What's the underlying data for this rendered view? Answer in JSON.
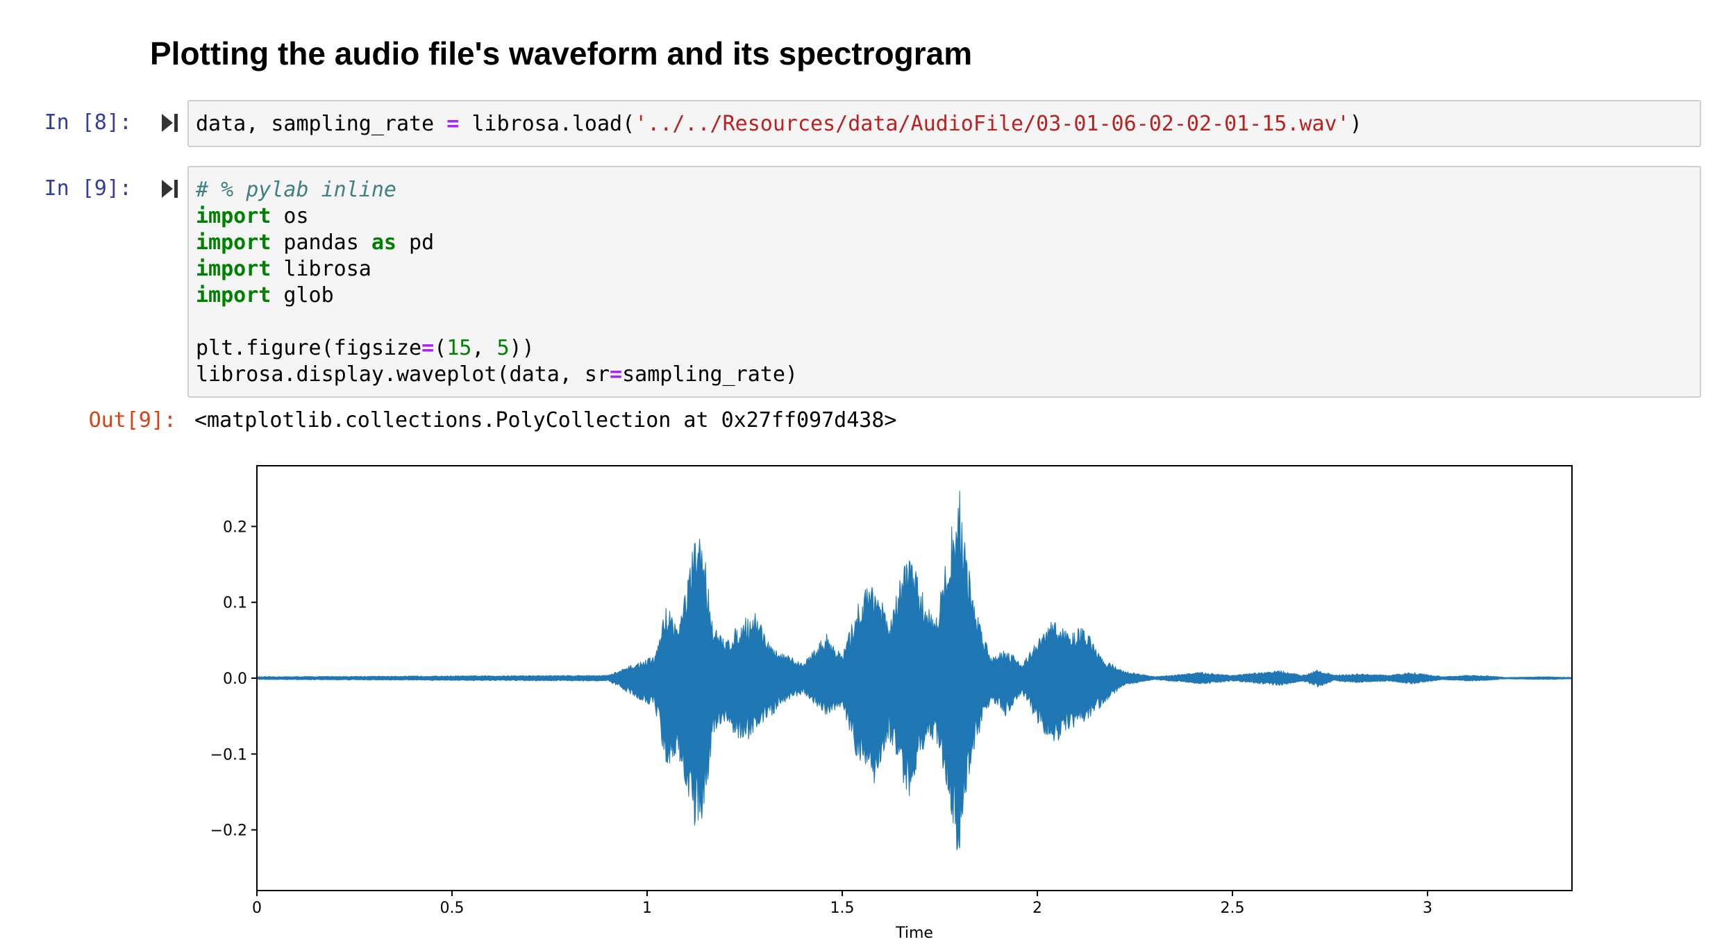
{
  "heading": "Plotting the audio file's waveform and its spectrogram",
  "cells": [
    {
      "prompt": "In [8]:",
      "lines": [
        [
          {
            "t": "data, sampling_rate ",
            "c": ""
          },
          {
            "t": "=",
            "c": "op"
          },
          {
            "t": " librosa.load(",
            "c": ""
          },
          {
            "t": "'../../Resources/data/AudioFile/03-01-06-02-02-01-15.wav'",
            "c": "str"
          },
          {
            "t": ")",
            "c": ""
          }
        ]
      ]
    },
    {
      "prompt": "In [9]:",
      "lines": [
        [
          {
            "t": "# % pylab inline",
            "c": "cm"
          }
        ],
        [
          {
            "t": "import",
            "c": "kw"
          },
          {
            "t": " os",
            "c": ""
          }
        ],
        [
          {
            "t": "import",
            "c": "kw"
          },
          {
            "t": " pandas ",
            "c": ""
          },
          {
            "t": "as",
            "c": "kw"
          },
          {
            "t": " pd",
            "c": ""
          }
        ],
        [
          {
            "t": "import",
            "c": "kw"
          },
          {
            "t": " librosa",
            "c": ""
          }
        ],
        [
          {
            "t": "import",
            "c": "kw"
          },
          {
            "t": " glob",
            "c": ""
          }
        ],
        [
          {
            "t": "",
            "c": ""
          }
        ],
        [
          {
            "t": "plt.figure(figsize",
            "c": ""
          },
          {
            "t": "=",
            "c": "op"
          },
          {
            "t": "(",
            "c": ""
          },
          {
            "t": "15",
            "c": "num"
          },
          {
            "t": ", ",
            "c": ""
          },
          {
            "t": "5",
            "c": "num"
          },
          {
            "t": "))",
            "c": ""
          }
        ],
        [
          {
            "t": "librosa.display.waveplot(data, sr",
            "c": ""
          },
          {
            "t": "=",
            "c": "op"
          },
          {
            "t": "sampling_rate)",
            "c": ""
          }
        ]
      ]
    }
  ],
  "output": {
    "prompt": "Out[9]:",
    "text": "<matplotlib.collections.PolyCollection at 0x27ff097d438>"
  },
  "chart_data": {
    "type": "area",
    "title": "",
    "xlabel": "Time",
    "ylabel": "",
    "xlim": [
      0,
      3.37
    ],
    "ylim": [
      -0.28,
      0.28
    ],
    "xticks": [
      0,
      0.5,
      1,
      1.5,
      2,
      2.5,
      3
    ],
    "xtick_labels": [
      "0",
      "0.5",
      "1",
      "1.5",
      "2",
      "2.5",
      "3"
    ],
    "yticks": [
      0.2,
      0.1,
      0.0,
      -0.1,
      -0.2
    ],
    "ytick_labels": [
      "0.2",
      "0.1",
      "0.0",
      "−0.1",
      "−0.2"
    ],
    "grid": false,
    "series_color": "#1f77b4",
    "envelope": {
      "t": [
        0,
        0.9,
        1.02,
        1.05,
        1.08,
        1.12,
        1.14,
        1.17,
        1.2,
        1.25,
        1.28,
        1.32,
        1.36,
        1.4,
        1.46,
        1.5,
        1.54,
        1.58,
        1.62,
        1.67,
        1.7,
        1.74,
        1.78,
        1.8,
        1.82,
        1.84,
        1.88,
        1.92,
        1.96,
        2.0,
        2.04,
        2.08,
        2.12,
        2.16,
        2.22,
        2.3,
        2.36,
        2.42,
        2.5,
        2.62,
        2.68,
        2.72,
        2.76,
        2.82,
        2.9,
        2.96,
        3.04,
        3.1,
        3.16,
        3.2,
        3.3,
        3.37
      ],
      "upper": [
        0.002,
        0.004,
        0.03,
        0.1,
        0.07,
        0.18,
        0.2,
        0.07,
        0.05,
        0.08,
        0.09,
        0.04,
        0.03,
        0.02,
        0.06,
        0.03,
        0.1,
        0.14,
        0.07,
        0.18,
        0.12,
        0.08,
        0.2,
        0.26,
        0.16,
        0.1,
        0.03,
        0.04,
        0.02,
        0.05,
        0.08,
        0.06,
        0.07,
        0.03,
        0.01,
        0.002,
        0.005,
        0.008,
        0.004,
        0.01,
        0.004,
        0.012,
        0.004,
        0.006,
        0.004,
        0.008,
        0.002,
        0.004,
        0.003,
        0.001,
        0.002,
        0.001
      ],
      "lower": [
        -0.002,
        -0.004,
        -0.04,
        -0.12,
        -0.1,
        -0.2,
        -0.19,
        -0.08,
        -0.06,
        -0.09,
        -0.07,
        -0.05,
        -0.03,
        -0.02,
        -0.05,
        -0.04,
        -0.11,
        -0.15,
        -0.08,
        -0.16,
        -0.1,
        -0.08,
        -0.18,
        -0.26,
        -0.15,
        -0.09,
        -0.03,
        -0.05,
        -0.02,
        -0.06,
        -0.09,
        -0.07,
        -0.06,
        -0.04,
        -0.01,
        -0.002,
        -0.005,
        -0.008,
        -0.004,
        -0.01,
        -0.004,
        -0.012,
        -0.004,
        -0.006,
        -0.004,
        -0.008,
        -0.002,
        -0.004,
        -0.003,
        -0.001,
        -0.002,
        -0.001
      ]
    }
  }
}
